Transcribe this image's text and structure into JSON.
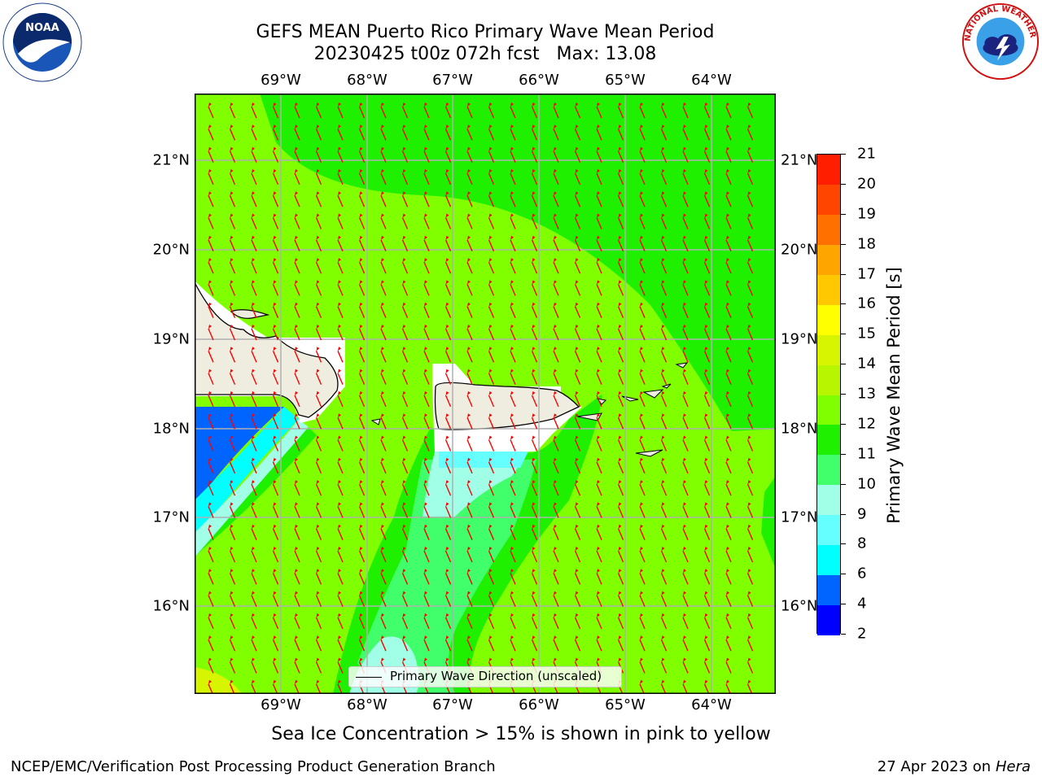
{
  "header": {
    "title_line1": "GEFS MEAN Puerto Rico Primary Wave Mean Period",
    "title_line2": "20230425 t00z 072h fcst   Max: 13.08"
  },
  "map": {
    "lon_labels": [
      "69°W",
      "68°W",
      "67°W",
      "66°W",
      "65°W",
      "64°W"
    ],
    "lat_labels": [
      "21°N",
      "20°N",
      "19°N",
      "18°N",
      "17°N",
      "16°N"
    ],
    "arrow_color": "#ff0000",
    "grid_color": "#b0b0b0",
    "land_color": "#eeeddf",
    "legend_label": "Primary Wave Direction (unscaled)"
  },
  "colorbar": {
    "title": "Primary Wave Mean Period [s]",
    "levels": [
      "2",
      "4",
      "6",
      "8",
      "9",
      "10",
      "11",
      "12",
      "13",
      "14",
      "15",
      "16",
      "17",
      "18",
      "19",
      "20",
      "21"
    ],
    "colors": [
      "#0000ff",
      "#0064ff",
      "#00ffff",
      "#66ffff",
      "#a0ffe6",
      "#40ff6a",
      "#1ef000",
      "#80ff00",
      "#b8f500",
      "#d8f500",
      "#ffff00",
      "#ffc800",
      "#ffa500",
      "#ff7000",
      "#ff4500",
      "#ff1e00"
    ]
  },
  "footer": {
    "note": "Sea Ice Concentration > 15% is shown in pink to yellow",
    "left": "NCEP/EMC/Verification Post Processing Product Generation Branch",
    "right_prefix": "27 Apr 2023 on ",
    "right_machine": "Hera"
  },
  "logos": {
    "noaa_text": "NOAA",
    "nws_text": "NATIONAL WEATHER SERVICE"
  }
}
